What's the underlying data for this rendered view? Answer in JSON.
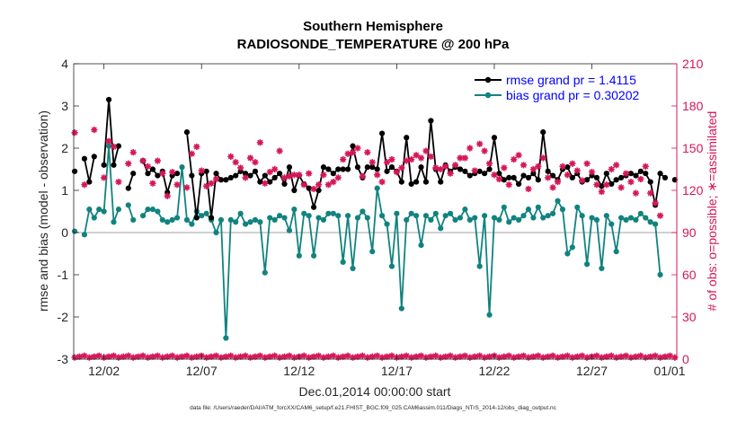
{
  "title_line1": "Southern Hemisphere",
  "title_line2": "RADIOSONDE_TEMPERATURE @ 200 hPa",
  "footer": "data file: /Users/raeder/DAI/ATM_forcXX/CAM6_setup/f.e21.FHIST_BGC.f09_025.CAM6assim.011/Diags_NTrS_2014-12/obs_diag_output.nc",
  "colors": {
    "rmse": "#000000",
    "bias": "#11837f",
    "obs": "#d51756",
    "zero": "#b3b3b3",
    "axis": "#262626",
    "legend_text": "#0000ff"
  },
  "chart_data": {
    "type": "line",
    "xlabel": "Dec.01,2014 00:00:00 start",
    "ylabel_left": "rmse and bias (model - observation)",
    "ylabel_right": "# of obs: o=possible; ∗=assimilated",
    "xlim": [
      0.2,
      31.1
    ],
    "ylim_left": [
      -3,
      4
    ],
    "ylim_right": [
      0,
      210
    ],
    "xticks": [
      1.75,
      6.75,
      11.75,
      16.75,
      21.75,
      26.75,
      31.75
    ],
    "xtick_labels": [
      "12/02",
      "12/07",
      "12/12",
      "12/17",
      "12/22",
      "12/27",
      "01/01"
    ],
    "yticks_left": [
      -3,
      -2,
      -1,
      0,
      1,
      2,
      3,
      4
    ],
    "yticks_left_labels": [
      "-3",
      "-2",
      "-1",
      "0",
      "1",
      "2",
      "3",
      "4"
    ],
    "yticks_right": [
      0,
      30,
      60,
      90,
      120,
      150,
      180,
      210
    ],
    "yticks_right_labels": [
      "0",
      "30",
      "60",
      "90",
      "120",
      "150",
      "180",
      "210"
    ],
    "legend": {
      "position": "top-right",
      "rmse_label": "rmse grand pr = 1.4115",
      "bias_label": "bias grand pr = 0.30202"
    },
    "x": [
      0.25,
      0.5,
      0.75,
      1.0,
      1.25,
      1.5,
      1.75,
      2.0,
      2.25,
      2.5,
      2.75,
      3.0,
      3.25,
      3.5,
      3.75,
      4.0,
      4.25,
      4.5,
      4.75,
      5.0,
      5.25,
      5.5,
      5.75,
      6.0,
      6.25,
      6.5,
      6.75,
      7.0,
      7.25,
      7.5,
      7.75,
      8.0,
      8.25,
      8.5,
      8.75,
      9.0,
      9.25,
      9.5,
      9.75,
      10.0,
      10.25,
      10.5,
      10.75,
      11.0,
      11.25,
      11.5,
      11.75,
      12.0,
      12.25,
      12.5,
      12.75,
      13.0,
      13.25,
      13.5,
      13.75,
      14.0,
      14.25,
      14.5,
      14.75,
      15.0,
      15.25,
      15.5,
      15.75,
      16.0,
      16.25,
      16.5,
      16.75,
      17.0,
      17.25,
      17.5,
      17.75,
      18.0,
      18.25,
      18.5,
      18.75,
      19.0,
      19.25,
      19.5,
      19.75,
      20.0,
      20.25,
      20.5,
      20.75,
      21.0,
      21.25,
      21.5,
      21.75,
      22.0,
      22.25,
      22.5,
      22.75,
      23.0,
      23.25,
      23.5,
      23.75,
      24.0,
      24.25,
      24.5,
      24.75,
      25.0,
      25.25,
      25.5,
      25.75,
      26.0,
      26.25,
      26.5,
      26.75,
      27.0,
      27.25,
      27.5,
      27.75,
      28.0,
      28.25,
      28.5,
      28.75,
      29.0,
      29.25,
      29.5,
      29.75,
      30.0,
      30.25,
      30.5,
      30.75,
      31.0
    ],
    "rmse": [
      1.45,
      null,
      1.75,
      1.2,
      1.8,
      null,
      1.6,
      3.15,
      1.6,
      2.05,
      null,
      1.05,
      1.4,
      null,
      1.7,
      1.4,
      1.5,
      1.35,
      1.45,
      0.95,
      1.35,
      1.4,
      null,
      2.38,
      1.35,
      0.35,
      1.4,
      1.45,
      0.35,
      1.4,
      1.25,
      1.25,
      1.3,
      1.35,
      1.45,
      1.4,
      1.35,
      1.45,
      1.2,
      1.35,
      1.2,
      1.3,
      1.4,
      1.15,
      1.55,
      1.0,
      1.35,
      1.15,
      1.05,
      0.6,
      1.0,
      1.55,
      1.5,
      1.4,
      1.5,
      1.5,
      1.5,
      2.05,
      1.55,
      1.3,
      1.55,
      1.55,
      1.5,
      2.35,
      1.45,
      1.55,
      1.45,
      1.2,
      2.25,
      1.15,
      1.2,
      1.55,
      1.2,
      2.65,
      1.5,
      1.2,
      1.6,
      1.45,
      1.55,
      1.5,
      1.45,
      1.35,
      1.4,
      1.45,
      1.4,
      1.5,
      2.25,
      1.4,
      1.25,
      1.3,
      1.3,
      1.15,
      1.35,
      1.3,
      1.4,
      1.25,
      2.38,
      1.45,
      1.35,
      1.25,
      1.5,
      1.55,
      1.3,
      1.4,
      1.2,
      1.25,
      1.35,
      1.3,
      1.1,
      1.4,
      1.15,
      1.25,
      1.3,
      1.35,
      1.4,
      1.35,
      1.45,
      1.4,
      1.2,
      0.65,
      1.4,
      1.3,
      null,
      1.25
    ],
    "bias": [
      0.03,
      null,
      -0.05,
      0.55,
      0.35,
      0.55,
      0.5,
      2.05,
      0.25,
      0.55,
      null,
      0.65,
      0.3,
      null,
      0.4,
      0.55,
      0.55,
      0.5,
      0.3,
      0.25,
      0.3,
      0.35,
      1.55,
      0.3,
      0.2,
      0.5,
      0.4,
      0.45,
      0.3,
      0.0,
      0.3,
      -2.5,
      0.3,
      0.25,
      0.45,
      0.2,
      0.25,
      0.3,
      0.25,
      -0.95,
      0.35,
      0.3,
      0.4,
      0.35,
      0.05,
      0.55,
      -0.55,
      0.45,
      0.4,
      -0.55,
      0.35,
      0.3,
      0.45,
      0.45,
      0.4,
      -0.7,
      0.4,
      -0.85,
      0.35,
      0.5,
      0.35,
      -0.45,
      1.05,
      0.4,
      0.2,
      -0.8,
      0.45,
      -1.8,
      0.3,
      0.45,
      0.4,
      -0.3,
      0.4,
      0.3,
      0.45,
      0.1,
      0.4,
      0.45,
      0.3,
      0.35,
      0.55,
      0.3,
      0.35,
      -0.8,
      0.4,
      -1.95,
      0.35,
      0.3,
      0.6,
      0.25,
      0.35,
      0.3,
      0.4,
      0.55,
      0.35,
      0.6,
      0.35,
      0.4,
      0.45,
      0.75,
      0.55,
      -0.5,
      -0.35,
      0.6,
      0.4,
      -0.75,
      0.35,
      0.3,
      -0.85,
      0.4,
      0.2,
      -0.45,
      0.35,
      0.3,
      0.35,
      0.3,
      0.45,
      0.35,
      0.25,
      0.2,
      -1.0
    ]
  }
}
